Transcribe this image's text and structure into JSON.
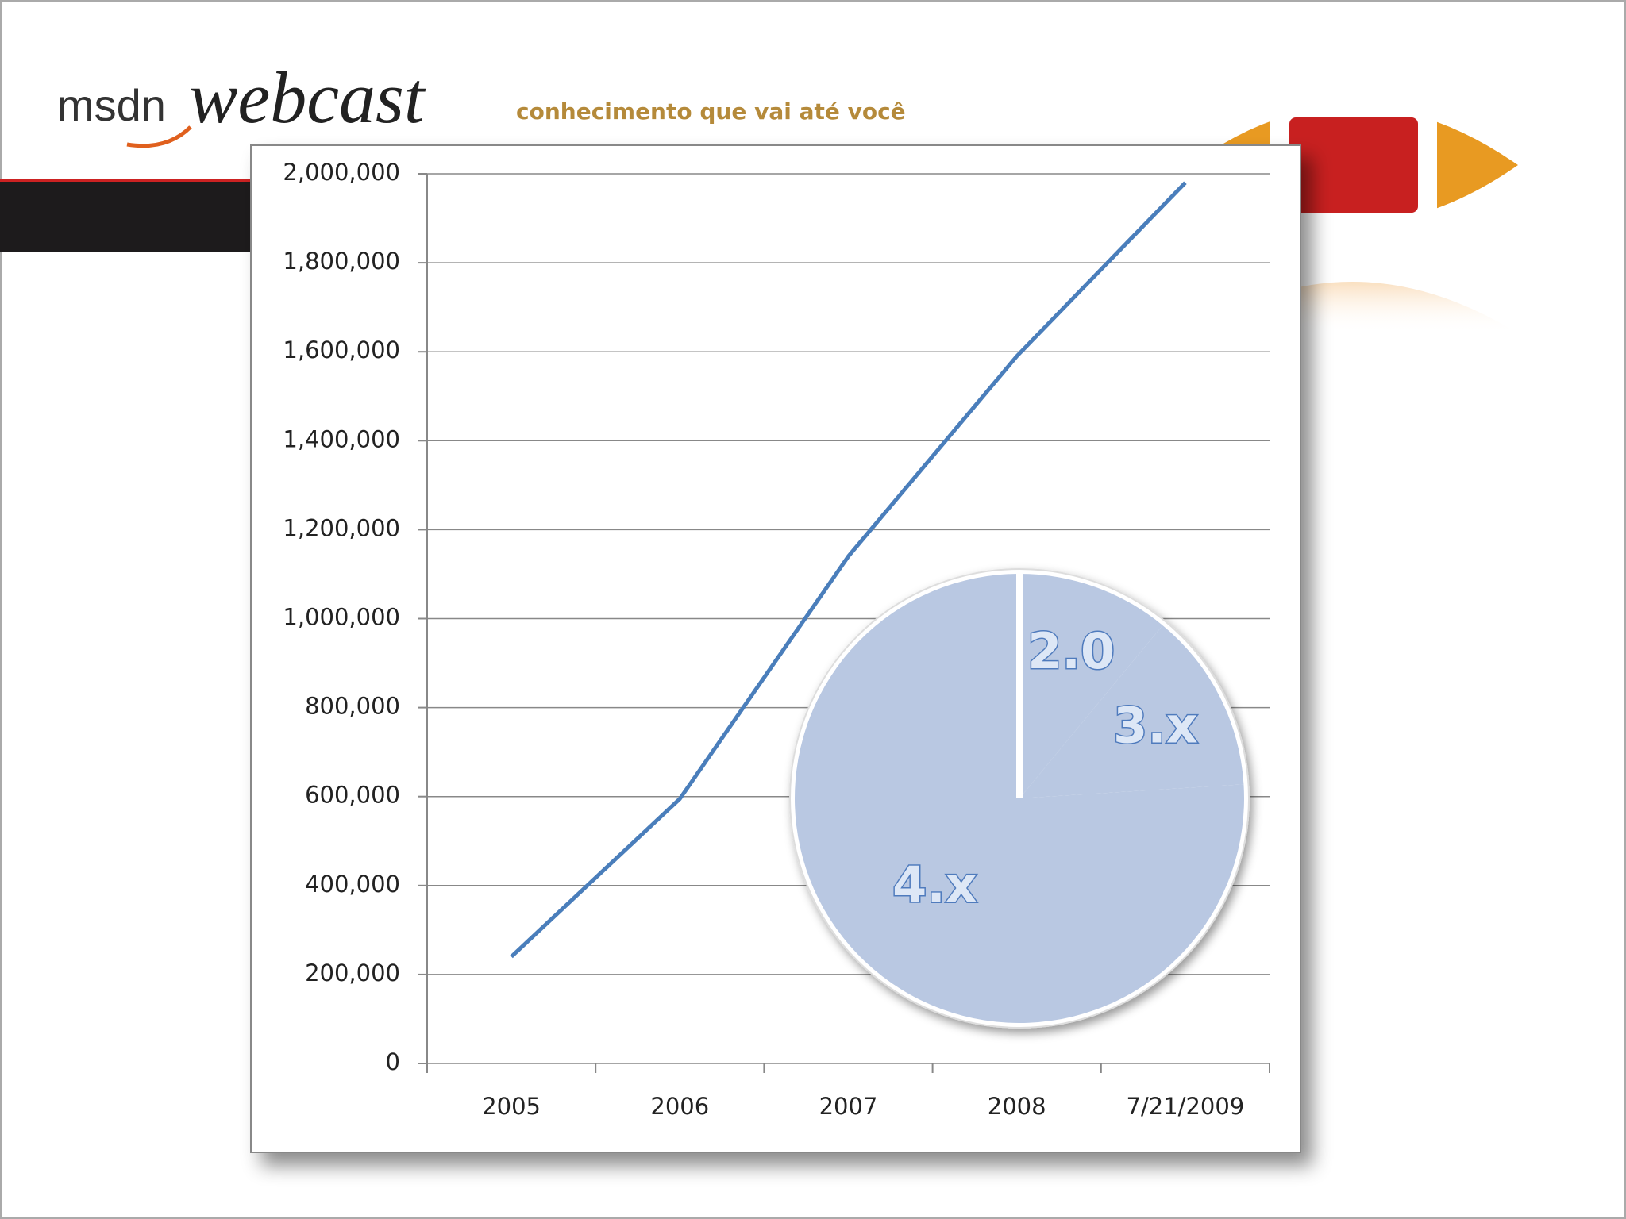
{
  "header": {
    "brand": "msdn",
    "product": "webcast",
    "tagline": "conhecimento que vai até você"
  },
  "chart_data": [
    {
      "type": "line",
      "categories": [
        "2005",
        "2006",
        "2007",
        "2008",
        "7/21/2009"
      ],
      "series": [
        {
          "color": "#4a7ebb",
          "values": [
            240000,
            595000,
            1140000,
            1590000,
            1980000
          ]
        }
      ],
      "ylim": [
        0,
        2000000
      ],
      "yticks": [
        0,
        {
          "value": 200000,
          "label": "200,000"
        },
        {
          "value": 400000,
          "label": "400,000"
        },
        {
          "value": 600000,
          "label": "600,000"
        },
        {
          "value": 800000,
          "label": "800,000"
        },
        {
          "value": 1000000,
          "label": "1,000,000"
        },
        {
          "value": 1200000,
          "label": "1,200,000"
        },
        {
          "value": 1400000,
          "label": "1,400,000"
        },
        {
          "value": 1600000,
          "label": "1,600,000"
        },
        {
          "value": 1800000,
          "label": "1,800,000"
        },
        {
          "value": 2000000,
          "label": "2,000,000"
        }
      ],
      "grid": true
    },
    {
      "type": "pie",
      "categories": [
        "2.0",
        "3.x",
        "4.x"
      ],
      "values": [
        11,
        13,
        76
      ],
      "color": "#b9c8e2"
    }
  ]
}
